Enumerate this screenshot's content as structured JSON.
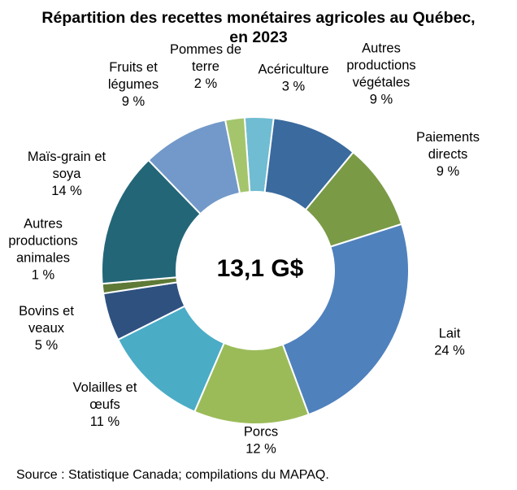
{
  "chart_data": {
    "type": "pie",
    "title_line1": "Répartition des recettes monétaires agricoles au Québec,",
    "title_line2": "en 2023",
    "center_label": "13,1 G$",
    "source": "Source : Statistique Canada; compilations du MAPAQ.",
    "slices": [
      {
        "label_lines": [
          "Acériculture"
        ],
        "value_label": "3 %",
        "value": 3,
        "color": "#70BCD2"
      },
      {
        "label_lines": [
          "Autres",
          "productions",
          "végétales"
        ],
        "value_label": "9 %",
        "value": 9,
        "color": "#3A6A9E"
      },
      {
        "label_lines": [
          "Paiements",
          "directs"
        ],
        "value_label": "9 %",
        "value": 9,
        "color": "#7A9A46"
      },
      {
        "label_lines": [
          "Lait"
        ],
        "value_label": "24 %",
        "value": 24,
        "color": "#4F81BD"
      },
      {
        "label_lines": [
          "Porcs"
        ],
        "value_label": "12 %",
        "value": 12,
        "color": "#9BBB59"
      },
      {
        "label_lines": [
          "Volailles et",
          "œufs"
        ],
        "value_label": "11 %",
        "value": 11,
        "color": "#4BACC6"
      },
      {
        "label_lines": [
          "Bovins et",
          "veaux"
        ],
        "value_label": "5 %",
        "value": 5,
        "color": "#2E5180"
      },
      {
        "label_lines": [
          "Autres",
          "productions",
          "animales"
        ],
        "value_label": "1 %",
        "value": 1,
        "color": "#5E7A36"
      },
      {
        "label_lines": [
          "Maïs-grain et",
          "soya"
        ],
        "value_label": "14 %",
        "value": 14,
        "color": "#236678"
      },
      {
        "label_lines": [
          "Fruits et",
          "légumes"
        ],
        "value_label": "9 %",
        "value": 9,
        "color": "#7299C9"
      },
      {
        "label_lines": [
          "Pommes de",
          "terre"
        ],
        "value_label": "2 %",
        "value": 2,
        "color": "#A4C56C"
      }
    ]
  }
}
